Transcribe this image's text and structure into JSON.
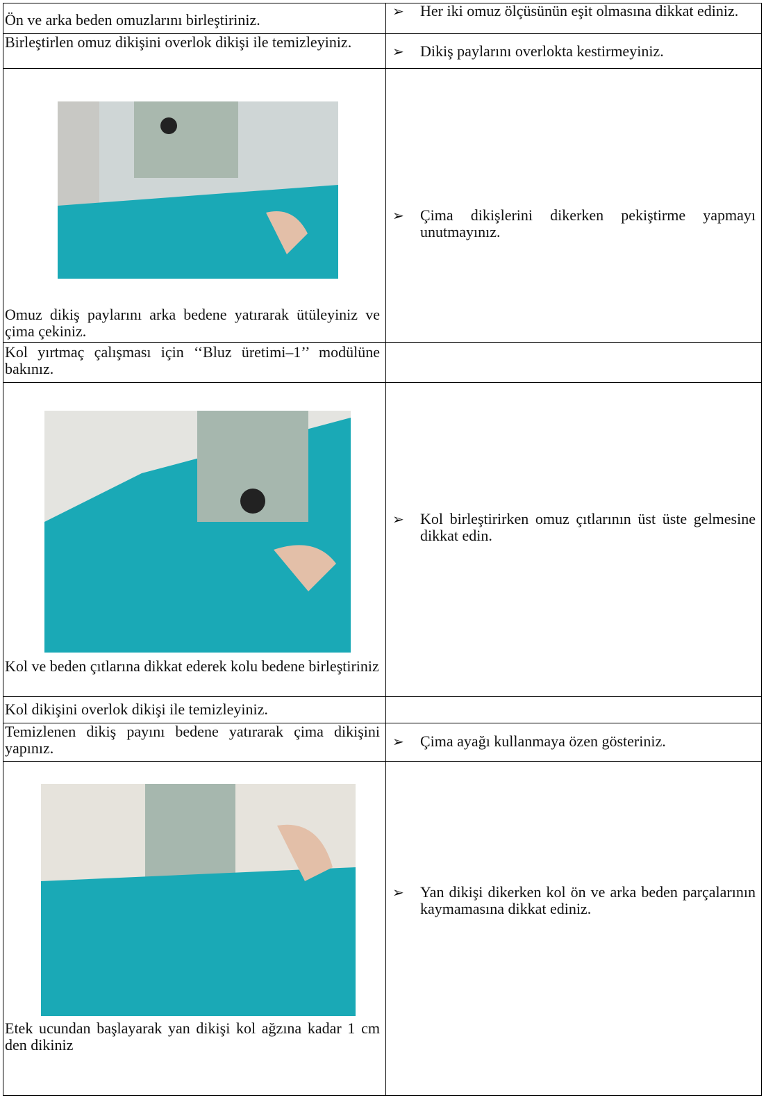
{
  "table": {
    "rows": [
      {
        "instruction": "Ön ve arka beden omuzlarını birleştiriniz.",
        "tip": "Her iki omuz ölçüsünün eşit olmasına dikkat ediniz."
      },
      {
        "instruction": "Birleştirlen omuz dikişini overlok dikişi ile temizleyiniz.",
        "tip": "Dikiş paylarını overlokta kestirmeyiniz."
      },
      {
        "instruction": "Omuz dikiş paylarını arka bedene yatırarak ütüleyiniz ve çima çekiniz.",
        "tip": "Çima dikişlerini dikerken pekiştirme yapmayı unutmayınız."
      },
      {
        "instruction": "Kol yırtmaç çalışması için ‘‘Bluz üretimi–1’’ modülüne bakınız."
      },
      {
        "instruction": "Kol ve beden çıtlarına dikkat ederek kolu bedene birleştiriniz",
        "tip": "Kol birleştirirken omuz çıtlarının üst üste gelmesine dikkat edin."
      },
      {
        "instruction": "Kol dikişini overlok dikişi ile temizleyiniz."
      },
      {
        "instruction": "Temizlenen dikiş payını bedene yatırarak çima dikişini yapınız.",
        "tip": "Çima ayağı kullanmaya özen gösteriniz."
      },
      {
        "instruction": "Etek ucundan başlayarak yan dikişi kol ağzına kadar 1 cm den dikiniz",
        "tip": "Yan dikişi dikerken kol ön ve arka beden parçalarının kaymamasına dikkat ediniz."
      }
    ]
  }
}
